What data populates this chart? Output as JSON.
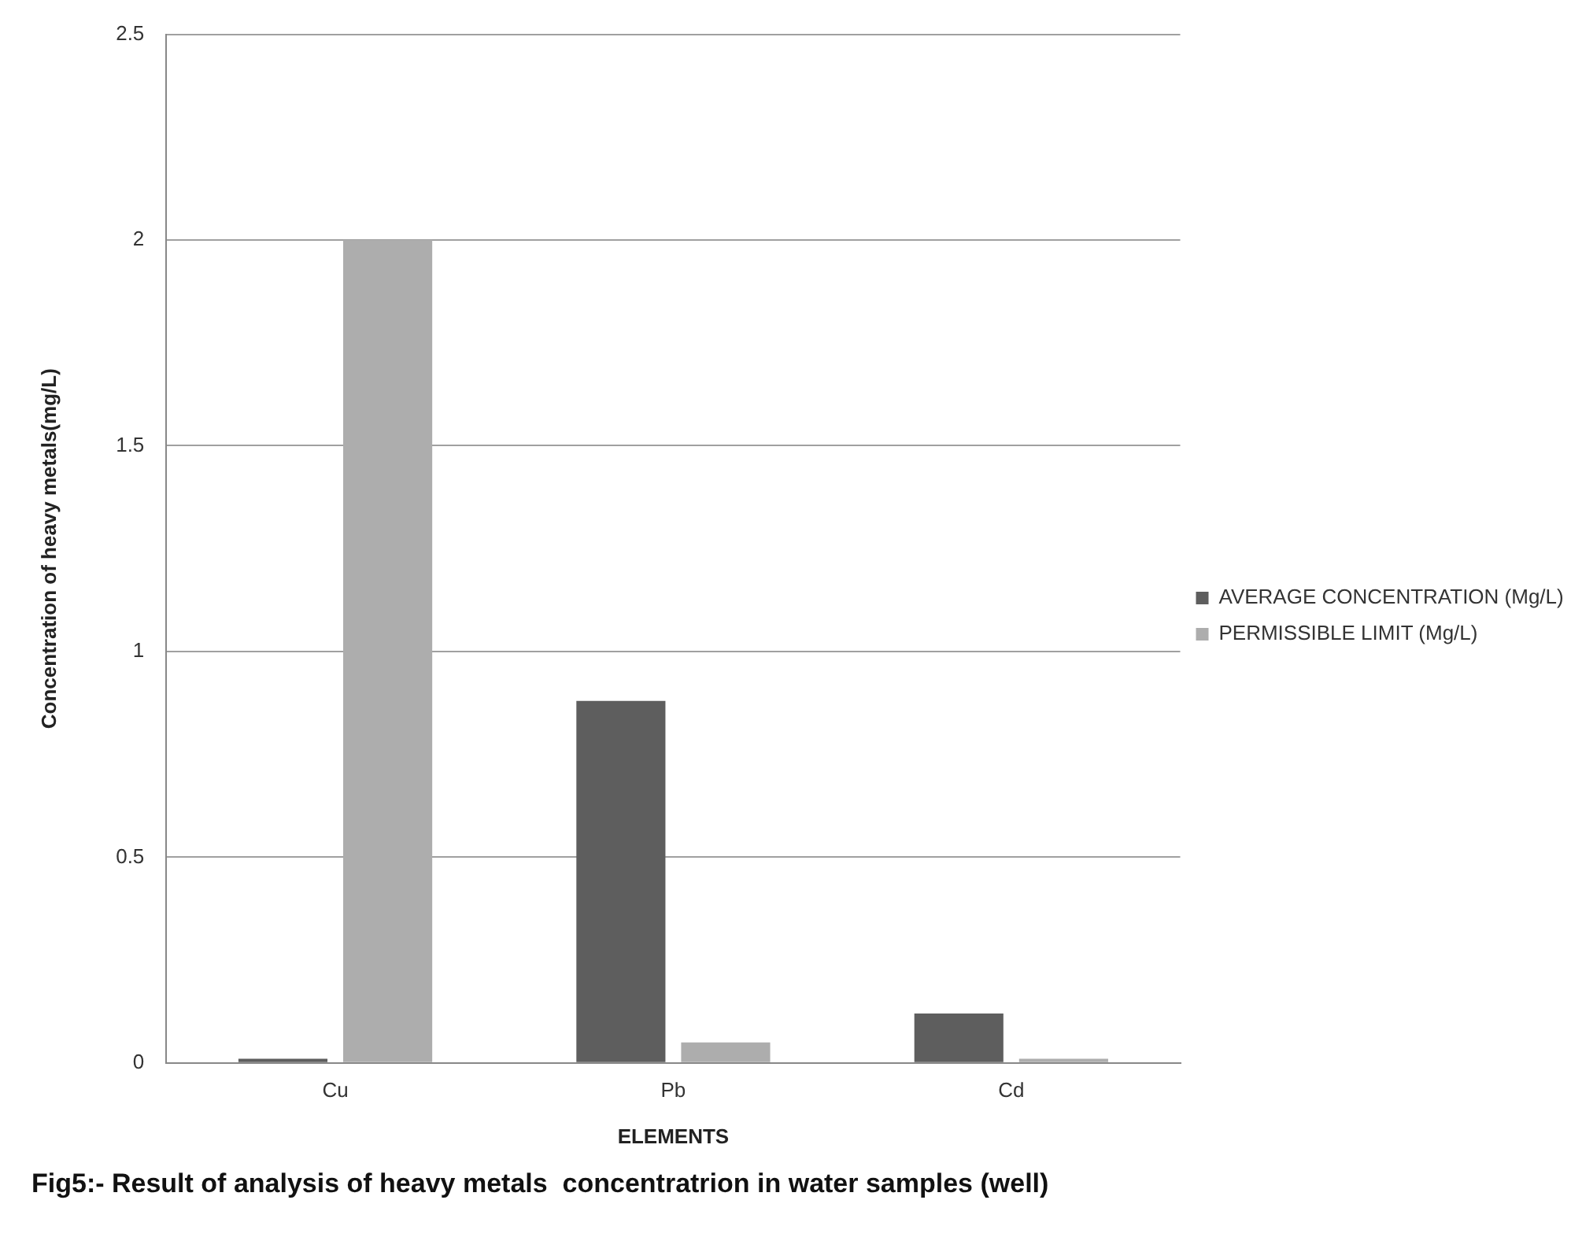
{
  "chart_data": {
    "type": "bar",
    "title": "Fig5:- Result of analysis of heavy metals  concentratrion in water samples (well)",
    "xlabel": "ELEMENTS",
    "ylabel": "Concentration of heavy metals(mg/L)",
    "categories": [
      "Cu",
      "Pb",
      "Cd"
    ],
    "series": [
      {
        "name": "AVERAGE CONCENTRATION (Mg/L)",
        "color": "#5e5e5e",
        "values": [
          0.01,
          0.88,
          0.12
        ]
      },
      {
        "name": "PERMISSIBLE LIMIT (Mg/L)",
        "color": "#adadad",
        "values": [
          2,
          0.05,
          0.01
        ]
      }
    ],
    "ylim": [
      0,
      2.5
    ],
    "yticks": [
      0,
      0.5,
      1,
      1.5,
      2,
      2.5
    ],
    "grid": "y",
    "legend": "right"
  }
}
